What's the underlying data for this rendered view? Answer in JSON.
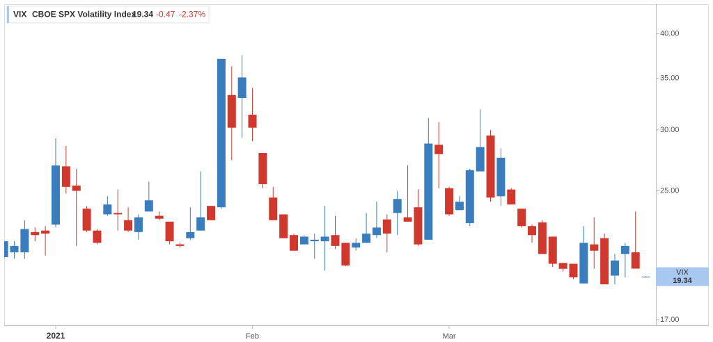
{
  "header": {
    "symbol": "VIX",
    "name": "CBOE SPX Volatility Index",
    "last": "19.34",
    "change": "-0.47",
    "change_percent": "-2.37%"
  },
  "chart_data": {
    "type": "candlestick",
    "categories": [
      null,
      null,
      null,
      null,
      null,
      "2021",
      null,
      null,
      null,
      null,
      null,
      null,
      null,
      null,
      null,
      null,
      null,
      null,
      null,
      null,
      null,
      null,
      null,
      null,
      "Feb",
      null,
      null,
      null,
      null,
      null,
      null,
      null,
      null,
      null,
      null,
      null,
      null,
      null,
      null,
      null,
      null,
      null,
      null,
      "Mar",
      null,
      null,
      null,
      null,
      null,
      null,
      null,
      null,
      null,
      null,
      null,
      null,
      null,
      null,
      null,
      null,
      null,
      null,
      null
    ],
    "open": [
      20.5,
      20.8,
      20.8,
      22.1,
      22.2,
      22.6,
      26.9,
      25.4,
      23.7,
      22.2,
      23.3,
      23.4,
      22.9,
      22.1,
      23.5,
      23.2,
      22.8,
      21.3,
      21.7,
      22.2,
      23.9,
      23.8,
      33.3,
      33.0,
      31.4,
      28.0,
      24.5,
      23.3,
      21.9,
      21.3,
      21.5,
      21.5,
      21.9,
      21.4,
      21.1,
      21.4,
      21.9,
      22.95,
      23.4,
      23.1,
      23.8,
      21.6,
      28.7,
      25.2,
      23.6,
      22.7,
      26.5,
      29.5,
      24.6,
      25.1,
      23.7,
      22.5,
      22.75,
      21.8,
      20.15,
      20.1,
      18.95,
      21.3,
      21.7,
      19.4,
      20.7,
      20.8,
      19.34
    ],
    "high": [
      21.6,
      21.5,
      22.9,
      22.4,
      22.5,
      29.25,
      28.6,
      26.7,
      23.9,
      22.3,
      24.6,
      25.1,
      23.8,
      23.3,
      25.7,
      23.5,
      22.8,
      21.4,
      23.8,
      26.5,
      23.9,
      37.1,
      36.3,
      37.5,
      34.0,
      28.0,
      25.3,
      23.3,
      22.0,
      21.9,
      22.0,
      23.9,
      23.2,
      21.4,
      21.7,
      23.4,
      24.2,
      23.3,
      25.0,
      27.0,
      25.1,
      31.1,
      30.7,
      25.3,
      24.6,
      26.7,
      31.9,
      30.0,
      28.4,
      25.2,
      23.7,
      22.6,
      22.9,
      21.8,
      20.15,
      20.1,
      22.5,
      23.1,
      22.0,
      20.7,
      21.4,
      23.5,
      19.37
    ],
    "low": [
      20.4,
      20.4,
      20.4,
      21.5,
      20.6,
      22.4,
      24.8,
      21.2,
      22.1,
      21.3,
      23.2,
      22.2,
      22.1,
      21.6,
      23.5,
      22.9,
      21.3,
      21.1,
      21.6,
      22.2,
      22.9,
      23.7,
      27.4,
      29.3,
      29.0,
      25.2,
      22.9,
      21.7,
      20.9,
      21.3,
      20.4,
      19.7,
      21.0,
      19.95,
      20.9,
      21.4,
      21.7,
      20.8,
      21.9,
      22.8,
      21.2,
      21.6,
      25.2,
      23.2,
      23.6,
      22.5,
      26.5,
      24.2,
      23.9,
      24.0,
      22.4,
      21.4,
      20.7,
      19.9,
      19.65,
      19.2,
      18.95,
      19.8,
      18.9,
      18.9,
      19.3,
      19.81,
      19.32
    ],
    "close": [
      21.5,
      21.2,
      22.3,
      21.9,
      22.0,
      26.97,
      25.3,
      25.0,
      22.2,
      21.4,
      24.0,
      23.3,
      22.2,
      23.1,
      24.3,
      23.0,
      21.5,
      21.2,
      22.1,
      23.1,
      22.9,
      37.1,
      30.2,
      35.1,
      30.2,
      25.5,
      22.9,
      21.7,
      20.9,
      21.8,
      21.6,
      21.8,
      21.2,
      20.0,
      21.4,
      22.0,
      22.4,
      22.0,
      24.4,
      22.8,
      21.3,
      28.8,
      27.9,
      23.3,
      24.2,
      26.6,
      28.5,
      24.5,
      27.6,
      24.0,
      22.5,
      21.9,
      20.7,
      20.1,
      19.8,
      19.3,
      21.4,
      20.9,
      18.9,
      20.3,
      21.2,
      19.81,
      19.34
    ],
    "up_color": "#3a7dbf",
    "down_color": "#d0382e",
    "log_scale": true,
    "ylim": [
      16.72,
      43.7
    ],
    "yticks": [
      {
        "value": 17,
        "label": "17.00"
      },
      {
        "value": 25,
        "label": "25.00"
      },
      {
        "value": 30,
        "label": "30.00"
      },
      {
        "value": 35,
        "label": "35.00"
      },
      {
        "value": 40,
        "label": "40.00"
      }
    ]
  }
}
